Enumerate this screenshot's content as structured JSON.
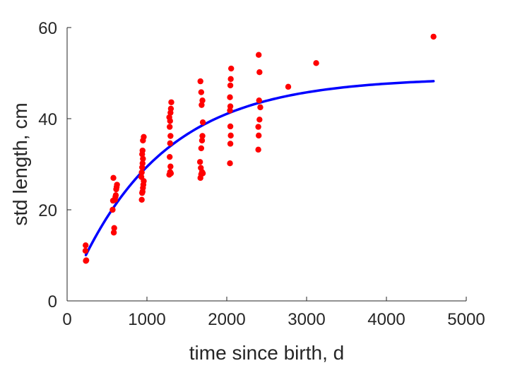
{
  "chart_data": {
    "type": "scatter",
    "title": "",
    "xlabel": "time since birth, d",
    "ylabel": "std length, cm",
    "xlim": [
      0,
      5000
    ],
    "ylim": [
      0,
      60
    ],
    "xticks": [
      0,
      1000,
      2000,
      3000,
      4000,
      5000
    ],
    "yticks": [
      0,
      20,
      40,
      60
    ],
    "grid": false,
    "legend": "none",
    "colors": {
      "points": "#ff0000",
      "curve": "#0000ff",
      "axes": "#262626"
    },
    "series": [
      {
        "kind": "scatter",
        "points": [
          [
            235,
            8.8
          ],
          [
            240,
            8.9
          ],
          [
            230,
            11.0
          ],
          [
            232,
            12.2
          ],
          [
            570,
            20.0
          ],
          [
            575,
            22.0
          ],
          [
            580,
            27.0
          ],
          [
            585,
            15.0
          ],
          [
            590,
            16.0
          ],
          [
            600,
            22.2
          ],
          [
            605,
            22.8
          ],
          [
            610,
            23.2
          ],
          [
            615,
            24.5
          ],
          [
            620,
            25.0
          ],
          [
            625,
            25.5
          ],
          [
            935,
            22.2
          ],
          [
            940,
            23.7
          ],
          [
            945,
            24.0
          ],
          [
            950,
            24.8
          ],
          [
            955,
            25.5
          ],
          [
            960,
            26.3
          ],
          [
            930,
            27.2
          ],
          [
            935,
            28.2
          ],
          [
            940,
            29.3
          ],
          [
            945,
            30.2
          ],
          [
            950,
            31.2
          ],
          [
            940,
            32.2
          ],
          [
            945,
            33.0
          ],
          [
            950,
            35.2
          ],
          [
            960,
            36.0
          ],
          [
            1280,
            27.7
          ],
          [
            1290,
            28.3
          ],
          [
            1300,
            28.0
          ],
          [
            1295,
            29.5
          ],
          [
            1285,
            31.6
          ],
          [
            1290,
            34.6
          ],
          [
            1295,
            36.2
          ],
          [
            1285,
            38.2
          ],
          [
            1290,
            39.5
          ],
          [
            1280,
            40.3
          ],
          [
            1295,
            41.3
          ],
          [
            1300,
            42.2
          ],
          [
            1305,
            43.6
          ],
          [
            1670,
            27.0
          ],
          [
            1680,
            27.8
          ],
          [
            1690,
            28.3
          ],
          [
            1700,
            28.0
          ],
          [
            1675,
            29.2
          ],
          [
            1665,
            30.5
          ],
          [
            1680,
            33.5
          ],
          [
            1690,
            35.2
          ],
          [
            1695,
            36.2
          ],
          [
            1700,
            39.2
          ],
          [
            1685,
            43.0
          ],
          [
            1695,
            44.0
          ],
          [
            1680,
            45.8
          ],
          [
            1670,
            48.2
          ],
          [
            2040,
            30.2
          ],
          [
            2045,
            34.5
          ],
          [
            2050,
            36.3
          ],
          [
            2045,
            38.3
          ],
          [
            2040,
            41.8
          ],
          [
            2045,
            42.7
          ],
          [
            2040,
            44.7
          ],
          [
            2045,
            47.3
          ],
          [
            2050,
            48.7
          ],
          [
            2055,
            51.0
          ],
          [
            2395,
            33.2
          ],
          [
            2400,
            36.3
          ],
          [
            2395,
            38.2
          ],
          [
            2410,
            39.8
          ],
          [
            2420,
            42.5
          ],
          [
            2405,
            44.0
          ],
          [
            2410,
            50.2
          ],
          [
            2400,
            54.0
          ],
          [
            2770,
            47.0
          ],
          [
            3120,
            52.2
          ],
          [
            4590,
            58.0
          ]
        ]
      },
      {
        "kind": "fit-curve",
        "model": "von Bertalanffy",
        "Linf": 49.0,
        "L0": 0.9,
        "k": 0.0009,
        "x_range": [
          235,
          4590
        ]
      }
    ]
  }
}
